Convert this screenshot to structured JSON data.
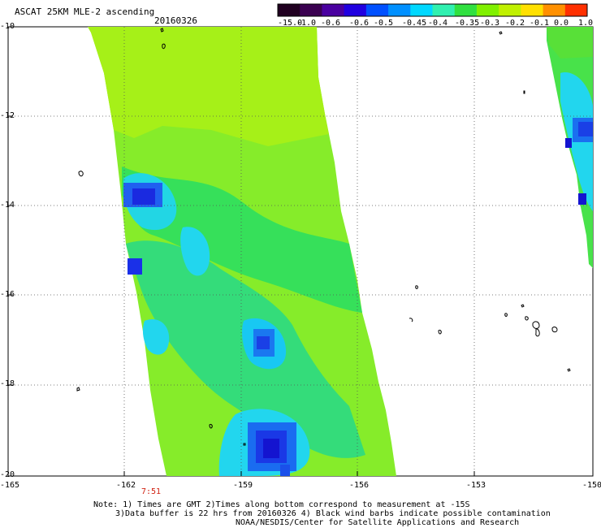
{
  "header": {
    "title": "ASCAT 25KM MLE-2 ascending",
    "date": "20160326"
  },
  "colorbar": {
    "labels": [
      "-15.0",
      "-1.0",
      "-0.6",
      "-0.6",
      "-0.5",
      "-0.45",
      "-0.4",
      "-0.35",
      "-0.3",
      "-0.2",
      "-0.1",
      "0.0",
      "1.0"
    ],
    "colors": [
      "#2a0030",
      "#4a0090",
      "#2800d8",
      "#0040ff",
      "#0090ff",
      "#00d8ff",
      "#40ffd0",
      "#30f060",
      "#70f000",
      "#b8f000",
      "#ffe000",
      "#ff7000",
      "#ff2000"
    ]
  },
  "map": {
    "lon_labels": [
      "-165",
      "-162",
      "-159",
      "-156",
      "-153",
      "-150"
    ],
    "lat_labels": [
      "-10",
      "-12",
      "-14",
      "-16",
      "-18",
      "-20"
    ],
    "time_label": "7:51"
  },
  "notes": {
    "line1": "Note: 1) Times are GMT 2)Times along bottom correspond to measurement at -15S",
    "line2": "3)Data buffer is 22 hrs from 20160326 4) Black wind barbs indicate possible contamination",
    "line3": "NOAA/NESDIS/Center for Satellite Applications and Research"
  }
}
